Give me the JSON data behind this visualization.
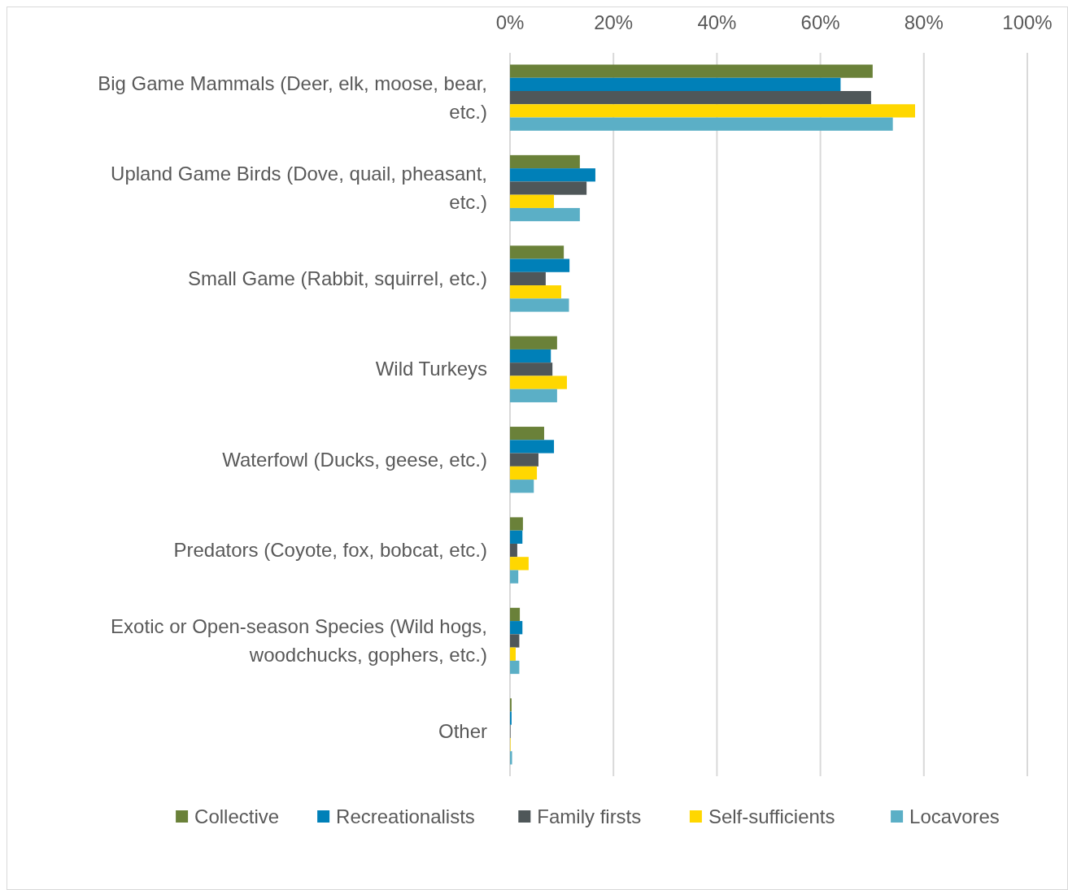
{
  "chart_data": {
    "type": "bar",
    "orientation": "horizontal",
    "categories": [
      "Big Game Mammals (Deer, elk, moose, bear, etc.)",
      "Upland Game Birds (Dove, quail, pheasant, etc.)",
      "Small Game (Rabbit, squirrel, etc.)",
      "Wild Turkeys",
      "Waterfowl (Ducks, geese, etc.)",
      "Predators (Coyote, fox, bobcat, etc.)",
      "Exotic or Open-season Species (Wild hogs, woodchucks, gophers, etc.)",
      "Other"
    ],
    "series": [
      {
        "name": "Collective",
        "color": "#6a8139",
        "values": [
          70.1,
          13.5,
          10.4,
          9.1,
          6.6,
          2.5,
          1.9,
          0.3
        ]
      },
      {
        "name": "Recreationalists",
        "color": "#0080b8",
        "values": [
          63.9,
          16.5,
          11.5,
          7.9,
          8.5,
          2.4,
          2.4,
          0.3
        ]
      },
      {
        "name": "Family firsts",
        "color": "#4f5759",
        "values": [
          69.8,
          14.8,
          6.9,
          8.2,
          5.5,
          1.4,
          1.8,
          0.1
        ]
      },
      {
        "name": "Self-sufficients",
        "color": "#ffd700",
        "values": [
          78.3,
          8.5,
          9.9,
          11.0,
          5.2,
          3.6,
          1.1,
          0.1
        ]
      },
      {
        "name": "Locavores",
        "color": "#5bafc6",
        "values": [
          74.0,
          13.5,
          11.4,
          9.1,
          4.6,
          1.6,
          1.8,
          0.4
        ]
      }
    ],
    "xlim": [
      0,
      100
    ],
    "xticks": [
      {
        "value": 0,
        "label": "0%"
      },
      {
        "value": 20,
        "label": "20%"
      },
      {
        "value": 40,
        "label": "40%"
      },
      {
        "value": 60,
        "label": "60%"
      },
      {
        "value": 80,
        "label": "80%"
      },
      {
        "value": 100,
        "label": "100%"
      }
    ],
    "grid": "x",
    "legend": "bottom"
  }
}
